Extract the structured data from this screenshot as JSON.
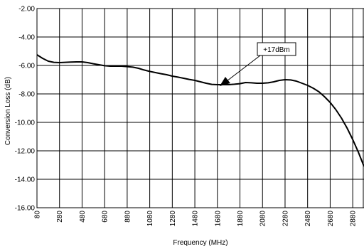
{
  "chart_data": {
    "type": "line",
    "title": "",
    "xlabel": "Frequency (MHz)",
    "ylabel": "Conversion Loss (dB)",
    "xlim": [
      80,
      2980
    ],
    "ylim": [
      -16,
      -2
    ],
    "grid": true,
    "x_ticks": [
      80,
      280,
      480,
      680,
      880,
      1080,
      1280,
      1480,
      1680,
      1880,
      2080,
      2280,
      2480,
      2680,
      2880
    ],
    "x_tick_labels": [
      "80",
      "280",
      "480",
      "680",
      "880",
      "1080",
      "1280",
      "1480",
      "1680",
      "1880",
      "2080",
      "2280",
      "2480",
      "2680",
      "2880"
    ],
    "y_ticks": [
      -2,
      -4,
      -6,
      -8,
      -10,
      -12,
      -14,
      -16
    ],
    "y_tick_labels": [
      "-2.00",
      "-4.00",
      "-6.00",
      "-8.00",
      "-10.00",
      "-12.00",
      "-14.00",
      "-16.00"
    ],
    "series": [
      {
        "name": "",
        "color": "#000000",
        "x": [
          80,
          130,
          180,
          230,
          280,
          330,
          380,
          430,
          480,
          530,
          580,
          630,
          680,
          730,
          780,
          830,
          880,
          930,
          980,
          1030,
          1080,
          1130,
          1180,
          1230,
          1280,
          1330,
          1380,
          1430,
          1480,
          1530,
          1580,
          1630,
          1680,
          1730,
          1780,
          1830,
          1880,
          1930,
          1980,
          2030,
          2080,
          2130,
          2180,
          2230,
          2280,
          2330,
          2380,
          2430,
          2480,
          2530,
          2580,
          2630,
          2680,
          2730,
          2780,
          2830,
          2880,
          2930,
          2980
        ],
        "y": [
          -5.25,
          -5.5,
          -5.7,
          -5.78,
          -5.8,
          -5.78,
          -5.76,
          -5.75,
          -5.75,
          -5.8,
          -5.88,
          -5.95,
          -6.02,
          -6.05,
          -6.05,
          -6.05,
          -6.08,
          -6.12,
          -6.2,
          -6.32,
          -6.42,
          -6.5,
          -6.58,
          -6.65,
          -6.75,
          -6.82,
          -6.9,
          -6.98,
          -7.05,
          -7.15,
          -7.25,
          -7.33,
          -7.35,
          -7.35,
          -7.35,
          -7.32,
          -7.28,
          -7.2,
          -7.22,
          -7.25,
          -7.25,
          -7.22,
          -7.15,
          -7.05,
          -7.0,
          -7.02,
          -7.1,
          -7.25,
          -7.4,
          -7.6,
          -7.85,
          -8.2,
          -8.6,
          -9.1,
          -9.7,
          -10.4,
          -11.2,
          -12.1,
          -13.1
        ]
      }
    ],
    "annotations": [
      {
        "text": "+17dBm",
        "x": 1700,
        "y": -7.45
      }
    ]
  }
}
